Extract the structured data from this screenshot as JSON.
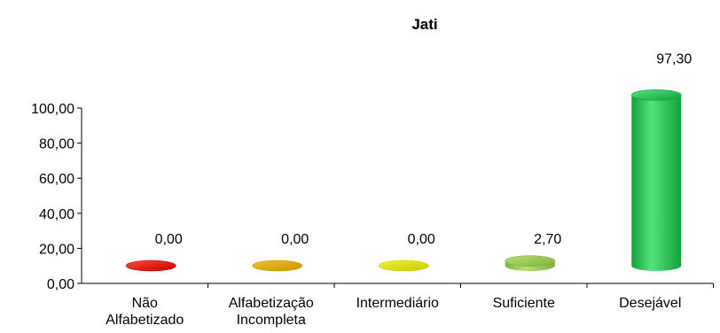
{
  "chart_data": {
    "type": "bar",
    "title": "Jati",
    "categories": [
      [
        "Não",
        "Alfabetizado"
      ],
      [
        "Alfabetização",
        "Incompleta"
      ],
      [
        "Intermediário"
      ],
      [
        "Suficiente"
      ],
      [
        "Desejável"
      ]
    ],
    "values": [
      0.0,
      0.0,
      0.0,
      2.7,
      97.3
    ],
    "value_labels": [
      "0,00",
      "0,00",
      "0,00",
      "2,70",
      "97,30"
    ],
    "ylim": [
      0,
      100
    ],
    "yticks": [
      0,
      20,
      40,
      60,
      80,
      100
    ],
    "ytick_labels": [
      "0,00",
      "20,00",
      "40,00",
      "60,00",
      "80,00",
      "100,00"
    ],
    "xlabel": "",
    "ylabel": "",
    "grid": false,
    "legend": false,
    "style": "3d-cylinder",
    "colors": [
      "#c00000",
      "#c89600",
      "#c8c800",
      "#7fb23f",
      "#12a03e"
    ],
    "colors_light": [
      "#ff4a3a",
      "#f0c030",
      "#f2f23a",
      "#b8e070",
      "#55e27e"
    ]
  }
}
